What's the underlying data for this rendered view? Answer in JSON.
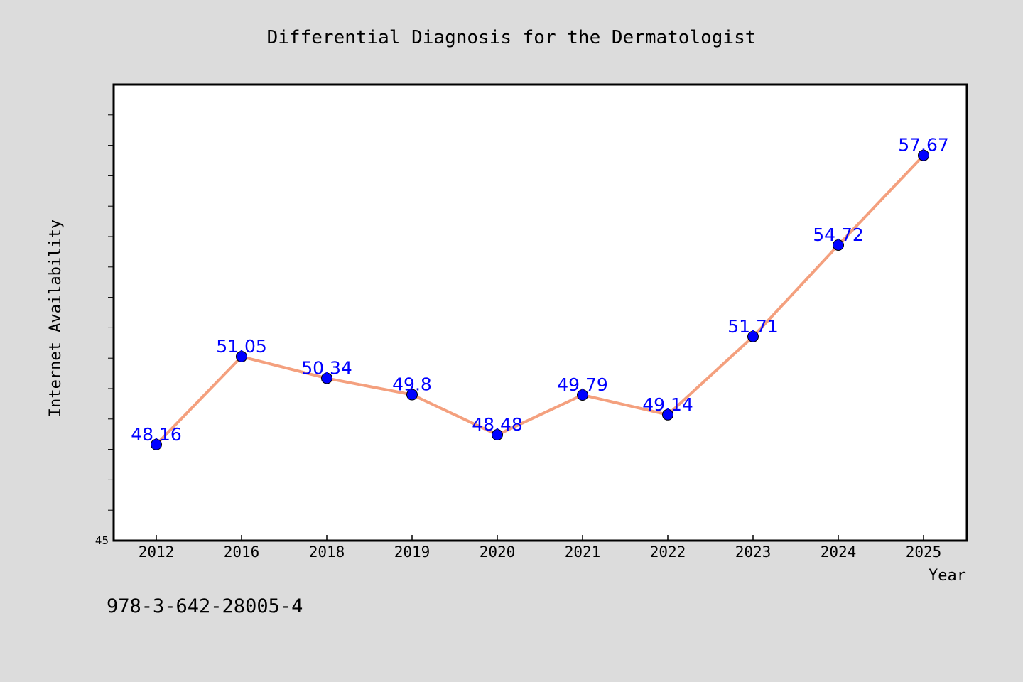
{
  "chart_data": {
    "type": "line",
    "title": "Differential Diagnosis for the Dermatologist",
    "xlabel": "Year",
    "ylabel": "Internet Availability",
    "categories": [
      "2012",
      "2016",
      "2018",
      "2019",
      "2020",
      "2021",
      "2022",
      "2023",
      "2024",
      "2025"
    ],
    "values": [
      48.16,
      51.05,
      50.34,
      49.8,
      48.48,
      49.79,
      49.14,
      51.71,
      54.72,
      57.67
    ],
    "data_labels": [
      "48.16",
      "51.05",
      "50.34",
      "49.8",
      "48.48",
      "49.79",
      "49.14",
      "51.71",
      "54.72",
      "57.67"
    ],
    "ylim": [
      45,
      60
    ],
    "y_tick_labels": [
      "45"
    ],
    "grid": false,
    "line_color": "#f4a07e",
    "marker_color": "#0000ff",
    "label_color": "#0000ff"
  },
  "footnote": "978-3-642-28005-4"
}
